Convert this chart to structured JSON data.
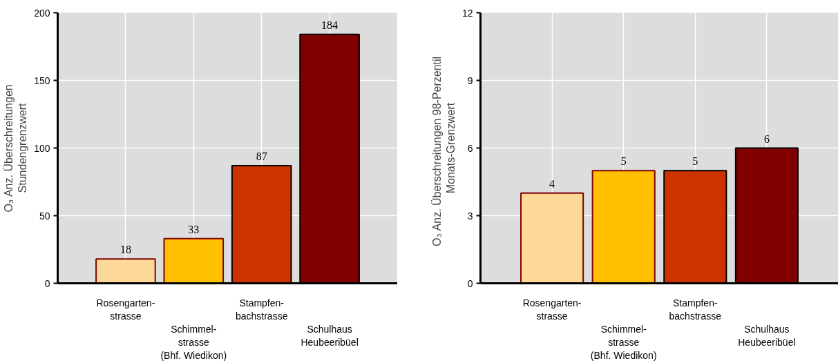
{
  "chart_data": [
    {
      "type": "bar",
      "ylabel": "O₃ Anz. Überschreitungen Stundengrenzwert",
      "categories": [
        "Rosengarten-\nstrasse",
        "Schimmel-\nstrasse\n(Bhf. Wiedikon)",
        "Stampfen-\nbachstrasse",
        "Schulhaus\nHeubeeribüel"
      ],
      "values": [
        18,
        33,
        87,
        184
      ],
      "colors": [
        "#fdd999",
        "#ffc000",
        "#cc3300",
        "#800000"
      ],
      "ylim": [
        0,
        200
      ],
      "yticks": [
        0,
        50,
        100,
        150,
        200
      ],
      "grid": true,
      "data_labels": true
    },
    {
      "type": "bar",
      "ylabel": "O₃ Anz. Überschreitungen   98-Perzentil Monats-Grenzwert",
      "categories": [
        "Rosengarten-\nstrasse",
        "Schimmel-\nstrasse\n(Bhf. Wiedikon)",
        "Stampfen-\nbachstrasse",
        "Schulhaus\nHeubeeribüel"
      ],
      "values": [
        4,
        5,
        5,
        6
      ],
      "colors": [
        "#fdd999",
        "#ffc000",
        "#cc3300",
        "#800000"
      ],
      "ylim": [
        0,
        12
      ],
      "yticks": [
        0,
        3,
        6,
        9,
        12
      ],
      "grid": true,
      "data_labels": true
    }
  ]
}
